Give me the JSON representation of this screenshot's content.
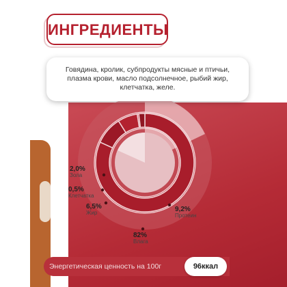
{
  "title": "ИНГРЕДИЕНТЫ",
  "ingredients_lines": [
    "Говядина, кролик, субпродукты мясные и птичьи,",
    "плазма крови, масло подсолнечное, рыбий жир,",
    "клетчатка, желе."
  ],
  "energy": {
    "label": "Энергетическая ценность на 100г",
    "value": "96ккал"
  },
  "colors": {
    "accent": "#b5202e",
    "zone": "#b52b36"
  },
  "chart_data": {
    "type": "pie",
    "slices": [
      {
        "name": "Влага",
        "value_label": "82%",
        "value": 82
      },
      {
        "name": "Протеин",
        "value_label": "9,2%",
        "value": 9.2
      },
      {
        "name": "Жир",
        "value_label": "6,5%",
        "value": 6.5
      },
      {
        "name": "Клетчатка",
        "value_label": "0,5%",
        "value": 0.5
      },
      {
        "name": "Зола",
        "value_label": "2,0%",
        "value": 2.0
      }
    ]
  }
}
